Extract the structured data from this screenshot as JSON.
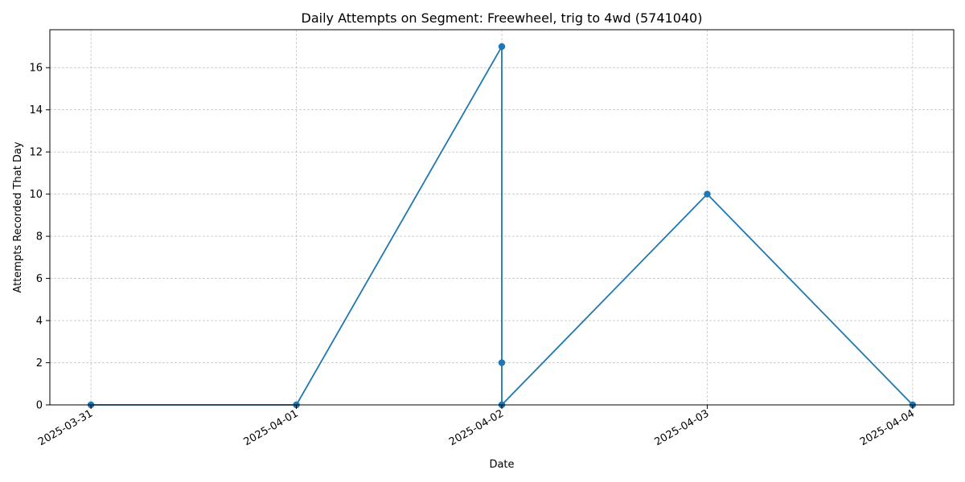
{
  "chart_data": {
    "type": "line",
    "title": "Daily Attempts on Segment: Freewheel, trig to 4wd (5741040)",
    "xlabel": "Date",
    "ylabel": "Attempts Recorded That Day",
    "x_ticks": [
      "2025-03-31",
      "2025-04-01",
      "2025-04-02",
      "2025-04-03",
      "2025-04-04"
    ],
    "y_ticks": [
      "0",
      "2",
      "4",
      "6",
      "8",
      "10",
      "12",
      "14",
      "16"
    ],
    "xlim": [
      "2025-03-30 19:12",
      "2025-04-04 04:48"
    ],
    "ylim": [
      0,
      17.8
    ],
    "grid": true,
    "marker": "circle",
    "line_color": "#1f77b4",
    "series": [
      {
        "x": [
          "2025-03-31",
          "2025-04-01",
          "2025-04-02",
          "2025-04-02",
          "2025-04-02",
          "2025-04-03",
          "2025-04-04"
        ],
        "values": [
          0,
          0,
          17,
          2,
          0,
          10,
          0
        ]
      }
    ]
  }
}
